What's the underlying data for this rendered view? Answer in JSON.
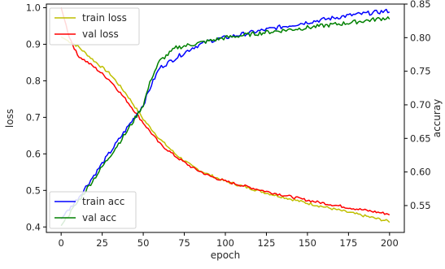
{
  "chart_data": {
    "type": "line",
    "title": "",
    "xlabel": "epoch",
    "ylabel_left": "loss",
    "ylabel_right": "accuray",
    "xlim": [
      -9,
      209
    ],
    "ylim_left": [
      0.385,
      1.01
    ],
    "ylim_right": [
      0.51,
      0.85
    ],
    "x_ticks": [
      "0",
      "25",
      "50",
      "75",
      "100",
      "125",
      "150",
      "175",
      "200"
    ],
    "y_left_ticks": [
      "0.4",
      "0.5",
      "0.6",
      "0.7",
      "0.8",
      "0.9",
      "1.0"
    ],
    "y_right_ticks": [
      "0.55",
      "0.60",
      "0.65",
      "0.70",
      "0.75",
      "0.80",
      "0.85"
    ],
    "grid": false,
    "legend_loss_position": "upper-left",
    "legend_acc_position": "lower-left",
    "series": [
      {
        "name": "train loss",
        "axis": "left",
        "color": "#bfbf00",
        "points": [
          [
            0,
            0.92
          ],
          [
            10,
            0.895
          ],
          [
            20,
            0.855
          ],
          [
            30,
            0.818
          ],
          [
            40,
            0.762
          ],
          [
            50,
            0.695
          ],
          [
            60,
            0.641
          ],
          [
            70,
            0.598
          ],
          [
            80,
            0.565
          ],
          [
            90,
            0.543
          ],
          [
            100,
            0.525
          ],
          [
            125,
            0.493
          ],
          [
            150,
            0.465
          ],
          [
            175,
            0.44
          ],
          [
            200,
            0.415
          ]
        ]
      },
      {
        "name": "val loss",
        "axis": "left",
        "color": "#ff0000",
        "points": [
          [
            0,
            1.0
          ],
          [
            5,
            0.92
          ],
          [
            10,
            0.87
          ],
          [
            20,
            0.838
          ],
          [
            30,
            0.8
          ],
          [
            40,
            0.745
          ],
          [
            50,
            0.685
          ],
          [
            60,
            0.628
          ],
          [
            70,
            0.592
          ],
          [
            80,
            0.562
          ],
          [
            90,
            0.54
          ],
          [
            100,
            0.525
          ],
          [
            125,
            0.497
          ],
          [
            150,
            0.473
          ],
          [
            175,
            0.453
          ],
          [
            200,
            0.435
          ]
        ]
      },
      {
        "name": "train acc",
        "axis": "right",
        "color": "#0000ff",
        "points": [
          [
            0,
            0.53
          ],
          [
            10,
            0.56
          ],
          [
            20,
            0.595
          ],
          [
            30,
            0.63
          ],
          [
            40,
            0.665
          ],
          [
            50,
            0.7
          ],
          [
            55,
            0.73
          ],
          [
            60,
            0.755
          ],
          [
            70,
            0.77
          ],
          [
            80,
            0.785
          ],
          [
            90,
            0.795
          ],
          [
            100,
            0.8
          ],
          [
            125,
            0.812
          ],
          [
            150,
            0.823
          ],
          [
            175,
            0.833
          ],
          [
            200,
            0.84
          ]
        ]
      },
      {
        "name": "val acc",
        "axis": "right",
        "color": "#008000",
        "points": [
          [
            0,
            0.52
          ],
          [
            10,
            0.555
          ],
          [
            20,
            0.59
          ],
          [
            30,
            0.625
          ],
          [
            40,
            0.66
          ],
          [
            50,
            0.7
          ],
          [
            55,
            0.74
          ],
          [
            60,
            0.765
          ],
          [
            70,
            0.785
          ],
          [
            80,
            0.79
          ],
          [
            90,
            0.795
          ],
          [
            100,
            0.8
          ],
          [
            125,
            0.808
          ],
          [
            150,
            0.815
          ],
          [
            175,
            0.822
          ],
          [
            200,
            0.83
          ]
        ]
      }
    ]
  }
}
